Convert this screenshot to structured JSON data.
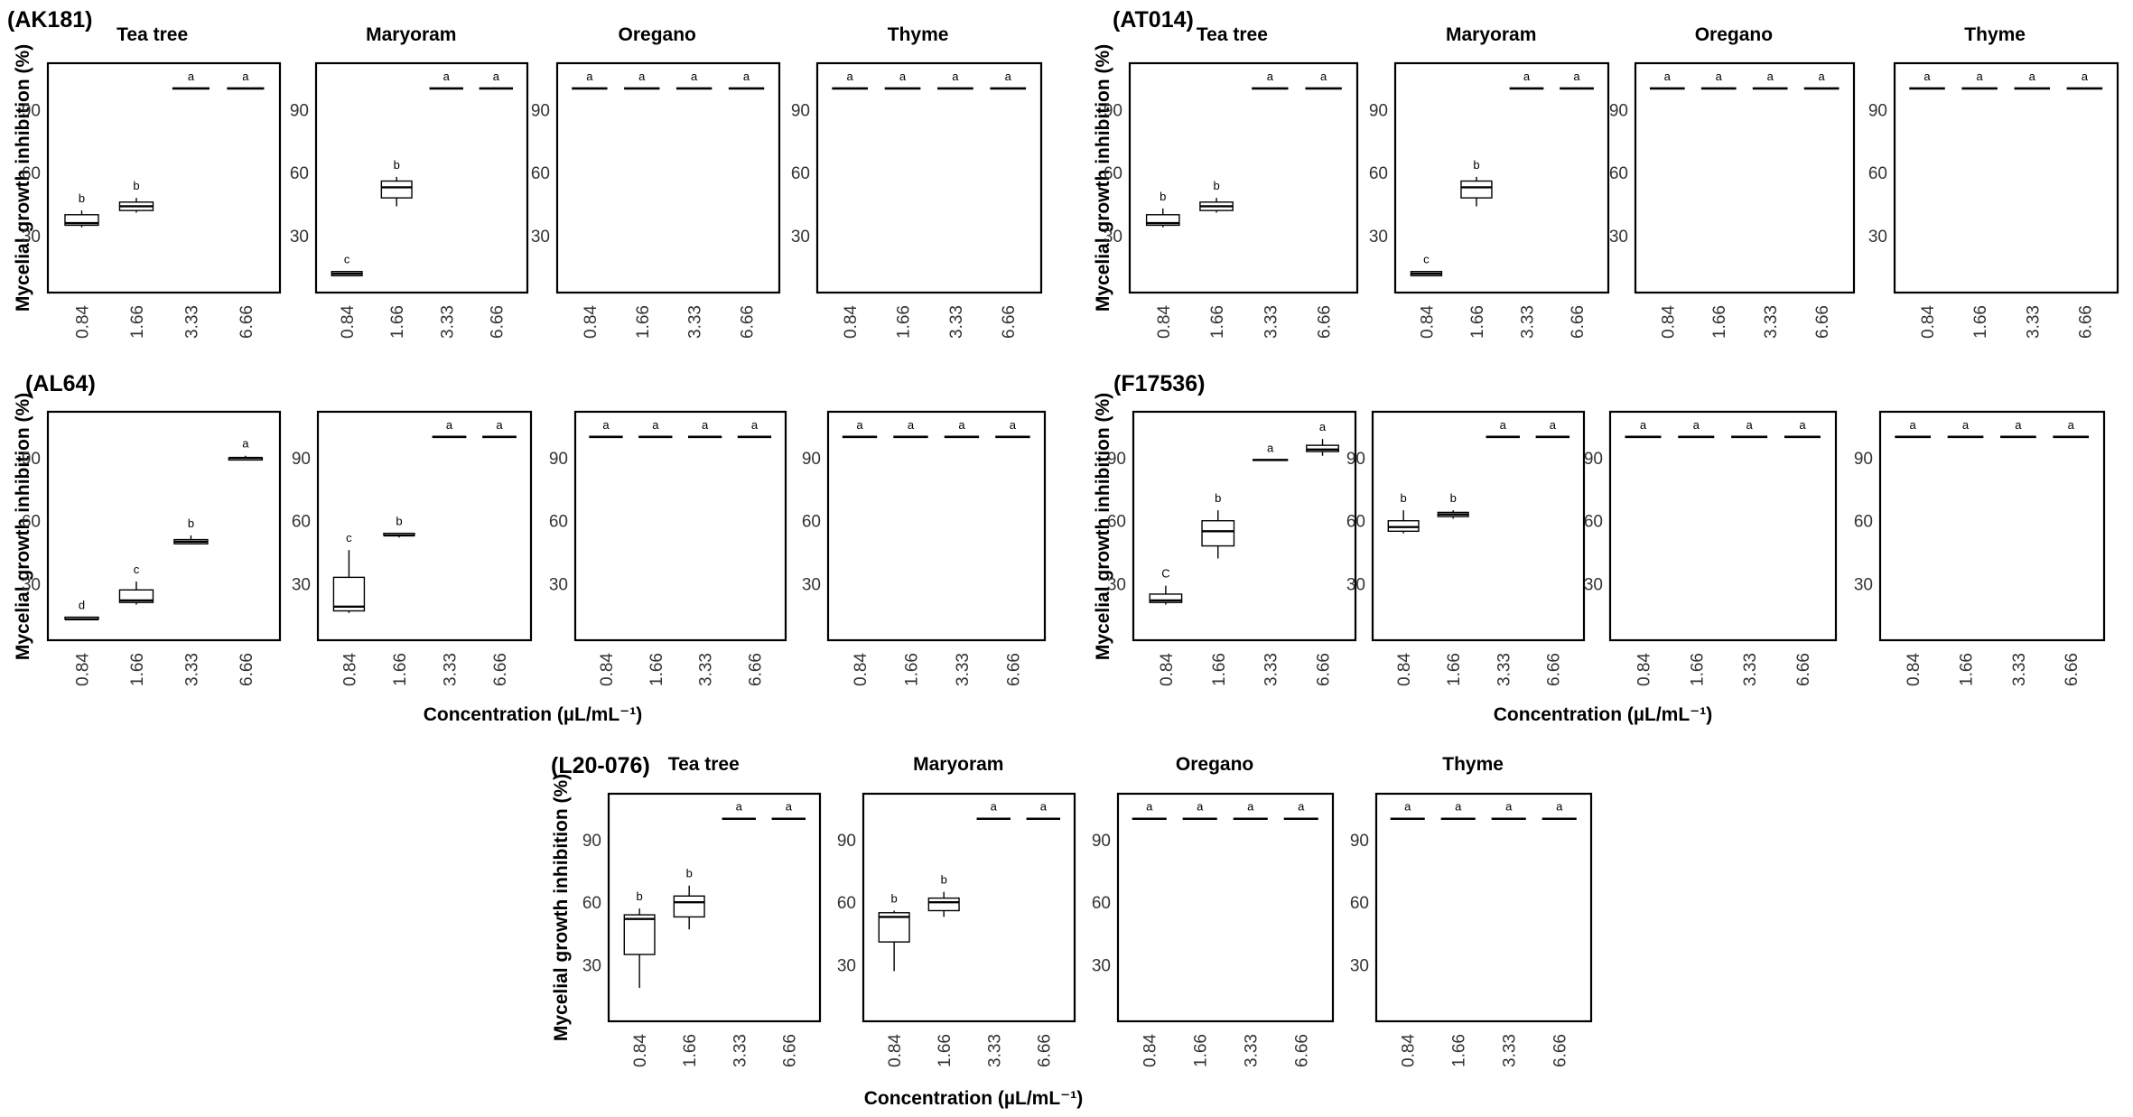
{
  "yticks": [
    30,
    60,
    90
  ],
  "ylim": [
    3,
    112
  ],
  "categories": [
    "0.84",
    "1.66",
    "3.33",
    "6.66"
  ],
  "colors": {
    "line": "#000000",
    "frame": "#000000",
    "tick_text": "#333333"
  },
  "chart_data": [
    {
      "type": "box",
      "strain": "(AK181)",
      "ylabel": "Mycelial growth inhibition (%)",
      "xlabel": "",
      "oils": [
        {
          "name": "Tea tree",
          "boxes": [
            {
              "min": 34,
              "q1": 35,
              "median": 36,
              "q3": 40,
              "max": 42,
              "letter": "b"
            },
            {
              "min": 41,
              "q1": 42,
              "median": 44,
              "q3": 46,
              "max": 48,
              "letter": "b"
            },
            {
              "min": 100,
              "q1": 100,
              "median": 100,
              "q3": 100,
              "max": 100,
              "letter": "a"
            },
            {
              "min": 100,
              "q1": 100,
              "median": 100,
              "q3": 100,
              "max": 100,
              "letter": "a"
            }
          ]
        },
        {
          "name": "Maryoram",
          "boxes": [
            {
              "min": 11,
              "q1": 11,
              "median": 12,
              "q3": 13,
              "max": 13,
              "letter": "c"
            },
            {
              "min": 44,
              "q1": 48,
              "median": 53,
              "q3": 56,
              "max": 58,
              "letter": "b"
            },
            {
              "min": 100,
              "q1": 100,
              "median": 100,
              "q3": 100,
              "max": 100,
              "letter": "a"
            },
            {
              "min": 100,
              "q1": 100,
              "median": 100,
              "q3": 100,
              "max": 100,
              "letter": "a"
            }
          ]
        },
        {
          "name": "Oregano",
          "boxes": [
            {
              "min": 100,
              "q1": 100,
              "median": 100,
              "q3": 100,
              "max": 100,
              "letter": "a"
            },
            {
              "min": 100,
              "q1": 100,
              "median": 100,
              "q3": 100,
              "max": 100,
              "letter": "a"
            },
            {
              "min": 100,
              "q1": 100,
              "median": 100,
              "q3": 100,
              "max": 100,
              "letter": "a"
            },
            {
              "min": 100,
              "q1": 100,
              "median": 100,
              "q3": 100,
              "max": 100,
              "letter": "a"
            }
          ]
        },
        {
          "name": "Thyme",
          "boxes": [
            {
              "min": 100,
              "q1": 100,
              "median": 100,
              "q3": 100,
              "max": 100,
              "letter": "a"
            },
            {
              "min": 100,
              "q1": 100,
              "median": 100,
              "q3": 100,
              "max": 100,
              "letter": "a"
            },
            {
              "min": 100,
              "q1": 100,
              "median": 100,
              "q3": 100,
              "max": 100,
              "letter": "a"
            },
            {
              "min": 100,
              "q1": 100,
              "median": 100,
              "q3": 100,
              "max": 100,
              "letter": "a"
            }
          ]
        }
      ]
    },
    {
      "type": "box",
      "strain": "(AT014)",
      "ylabel": "Mycelial growth inhibition (%)",
      "xlabel": "",
      "oils": [
        {
          "name": "Tea tree",
          "boxes": [
            {
              "min": 34,
              "q1": 35,
              "median": 36,
              "q3": 40,
              "max": 43,
              "letter": "b"
            },
            {
              "min": 41,
              "q1": 42,
              "median": 44,
              "q3": 46,
              "max": 48,
              "letter": "b"
            },
            {
              "min": 100,
              "q1": 100,
              "median": 100,
              "q3": 100,
              "max": 100,
              "letter": "a"
            },
            {
              "min": 100,
              "q1": 100,
              "median": 100,
              "q3": 100,
              "max": 100,
              "letter": "a"
            }
          ]
        },
        {
          "name": "Maryoram",
          "boxes": [
            {
              "min": 11,
              "q1": 11,
              "median": 12,
              "q3": 13,
              "max": 13,
              "letter": "c"
            },
            {
              "min": 44,
              "q1": 48,
              "median": 53,
              "q3": 56,
              "max": 58,
              "letter": "b"
            },
            {
              "min": 100,
              "q1": 100,
              "median": 100,
              "q3": 100,
              "max": 100,
              "letter": "a"
            },
            {
              "min": 100,
              "q1": 100,
              "median": 100,
              "q3": 100,
              "max": 100,
              "letter": "a"
            }
          ]
        },
        {
          "name": "Oregano",
          "boxes": [
            {
              "min": 100,
              "q1": 100,
              "median": 100,
              "q3": 100,
              "max": 100,
              "letter": "a"
            },
            {
              "min": 100,
              "q1": 100,
              "median": 100,
              "q3": 100,
              "max": 100,
              "letter": "a"
            },
            {
              "min": 100,
              "q1": 100,
              "median": 100,
              "q3": 100,
              "max": 100,
              "letter": "a"
            },
            {
              "min": 100,
              "q1": 100,
              "median": 100,
              "q3": 100,
              "max": 100,
              "letter": "a"
            }
          ]
        },
        {
          "name": "Thyme",
          "boxes": [
            {
              "min": 100,
              "q1": 100,
              "median": 100,
              "q3": 100,
              "max": 100,
              "letter": "a"
            },
            {
              "min": 100,
              "q1": 100,
              "median": 100,
              "q3": 100,
              "max": 100,
              "letter": "a"
            },
            {
              "min": 100,
              "q1": 100,
              "median": 100,
              "q3": 100,
              "max": 100,
              "letter": "a"
            },
            {
              "min": 100,
              "q1": 100,
              "median": 100,
              "q3": 100,
              "max": 100,
              "letter": "a"
            }
          ]
        }
      ]
    },
    {
      "type": "box",
      "strain": "(AL64)",
      "ylabel": "Mycelial growth inhibition (%)",
      "xlabel": "Concentration (µL/mL⁻¹)",
      "oils": [
        {
          "name": "",
          "boxes": [
            {
              "min": 13,
              "q1": 13,
              "median": 13,
              "q3": 14,
              "max": 14,
              "letter": "d"
            },
            {
              "min": 20,
              "q1": 21,
              "median": 22,
              "q3": 27,
              "max": 31,
              "letter": "c"
            },
            {
              "min": 49,
              "q1": 49,
              "median": 50,
              "q3": 51,
              "max": 53,
              "letter": "b"
            },
            {
              "min": 89,
              "q1": 89,
              "median": 90,
              "q3": 90,
              "max": 91,
              "letter": "a"
            }
          ]
        },
        {
          "name": "",
          "boxes": [
            {
              "min": 16,
              "q1": 17,
              "median": 19,
              "q3": 33,
              "max": 46,
              "letter": "c"
            },
            {
              "min": 52,
              "q1": 53,
              "median": 53,
              "q3": 54,
              "max": 54,
              "letter": "b"
            },
            {
              "min": 100,
              "q1": 100,
              "median": 100,
              "q3": 100,
              "max": 100,
              "letter": "a"
            },
            {
              "min": 100,
              "q1": 100,
              "median": 100,
              "q3": 100,
              "max": 100,
              "letter": "a"
            }
          ]
        },
        {
          "name": "",
          "boxes": [
            {
              "min": 100,
              "q1": 100,
              "median": 100,
              "q3": 100,
              "max": 100,
              "letter": "a"
            },
            {
              "min": 100,
              "q1": 100,
              "median": 100,
              "q3": 100,
              "max": 100,
              "letter": "a"
            },
            {
              "min": 100,
              "q1": 100,
              "median": 100,
              "q3": 100,
              "max": 100,
              "letter": "a"
            },
            {
              "min": 100,
              "q1": 100,
              "median": 100,
              "q3": 100,
              "max": 100,
              "letter": "a"
            }
          ]
        },
        {
          "name": "",
          "boxes": [
            {
              "min": 100,
              "q1": 100,
              "median": 100,
              "q3": 100,
              "max": 100,
              "letter": "a"
            },
            {
              "min": 100,
              "q1": 100,
              "median": 100,
              "q3": 100,
              "max": 100,
              "letter": "a"
            },
            {
              "min": 100,
              "q1": 100,
              "median": 100,
              "q3": 100,
              "max": 100,
              "letter": "a"
            },
            {
              "min": 100,
              "q1": 100,
              "median": 100,
              "q3": 100,
              "max": 100,
              "letter": "a"
            }
          ]
        }
      ]
    },
    {
      "type": "box",
      "strain": "(F17536)",
      "ylabel": "Mycelial growth inhibition (%)",
      "xlabel": "Concentration (µL/mL⁻¹)",
      "oils": [
        {
          "name": "",
          "boxes": [
            {
              "min": 20,
              "q1": 21,
              "median": 22,
              "q3": 25,
              "max": 29,
              "letter": "C"
            },
            {
              "min": 42,
              "q1": 48,
              "median": 55,
              "q3": 60,
              "max": 65,
              "letter": "b"
            },
            {
              "min": 89,
              "q1": 89,
              "median": 89,
              "q3": 89,
              "max": 89,
              "letter": "a"
            },
            {
              "min": 91,
              "q1": 93,
              "median": 94,
              "q3": 96,
              "max": 99,
              "letter": "a"
            }
          ]
        },
        {
          "name": "",
          "boxes": [
            {
              "min": 54,
              "q1": 55,
              "median": 57,
              "q3": 60,
              "max": 65,
              "letter": "b"
            },
            {
              "min": 61,
              "q1": 62,
              "median": 63,
              "q3": 64,
              "max": 65,
              "letter": "b"
            },
            {
              "min": 100,
              "q1": 100,
              "median": 100,
              "q3": 100,
              "max": 100,
              "letter": "a"
            },
            {
              "min": 100,
              "q1": 100,
              "median": 100,
              "q3": 100,
              "max": 100,
              "letter": "a"
            }
          ]
        },
        {
          "name": "",
          "boxes": [
            {
              "min": 100,
              "q1": 100,
              "median": 100,
              "q3": 100,
              "max": 100,
              "letter": "a"
            },
            {
              "min": 100,
              "q1": 100,
              "median": 100,
              "q3": 100,
              "max": 100,
              "letter": "a"
            },
            {
              "min": 100,
              "q1": 100,
              "median": 100,
              "q3": 100,
              "max": 100,
              "letter": "a"
            },
            {
              "min": 100,
              "q1": 100,
              "median": 100,
              "q3": 100,
              "max": 100,
              "letter": "a"
            }
          ]
        },
        {
          "name": "",
          "boxes": [
            {
              "min": 100,
              "q1": 100,
              "median": 100,
              "q3": 100,
              "max": 100,
              "letter": "a"
            },
            {
              "min": 100,
              "q1": 100,
              "median": 100,
              "q3": 100,
              "max": 100,
              "letter": "a"
            },
            {
              "min": 100,
              "q1": 100,
              "median": 100,
              "q3": 100,
              "max": 100,
              "letter": "a"
            },
            {
              "min": 100,
              "q1": 100,
              "median": 100,
              "q3": 100,
              "max": 100,
              "letter": "a"
            }
          ]
        }
      ]
    },
    {
      "type": "box",
      "strain": "(L20-076)",
      "ylabel": "Mycelial growth inhibition (%)",
      "xlabel": "Concentration (µL/mL⁻¹)",
      "oils": [
        {
          "name": "Tea tree",
          "boxes": [
            {
              "min": 19,
              "q1": 35,
              "median": 52,
              "q3": 54,
              "max": 57,
              "letter": "b"
            },
            {
              "min": 47,
              "q1": 53,
              "median": 60,
              "q3": 63,
              "max": 68,
              "letter": "b"
            },
            {
              "min": 100,
              "q1": 100,
              "median": 100,
              "q3": 100,
              "max": 100,
              "letter": "a"
            },
            {
              "min": 100,
              "q1": 100,
              "median": 100,
              "q3": 100,
              "max": 100,
              "letter": "a"
            }
          ]
        },
        {
          "name": "Maryoram",
          "boxes": [
            {
              "min": 27,
              "q1": 41,
              "median": 53,
              "q3": 55,
              "max": 56,
              "letter": "b"
            },
            {
              "min": 53,
              "q1": 56,
              "median": 60,
              "q3": 62,
              "max": 65,
              "letter": "b"
            },
            {
              "min": 100,
              "q1": 100,
              "median": 100,
              "q3": 100,
              "max": 100,
              "letter": "a"
            },
            {
              "min": 100,
              "q1": 100,
              "median": 100,
              "q3": 100,
              "max": 100,
              "letter": "a"
            }
          ]
        },
        {
          "name": "Oregano",
          "boxes": [
            {
              "min": 100,
              "q1": 100,
              "median": 100,
              "q3": 100,
              "max": 100,
              "letter": "a"
            },
            {
              "min": 100,
              "q1": 100,
              "median": 100,
              "q3": 100,
              "max": 100,
              "letter": "a"
            },
            {
              "min": 100,
              "q1": 100,
              "median": 100,
              "q3": 100,
              "max": 100,
              "letter": "a"
            },
            {
              "min": 100,
              "q1": 100,
              "median": 100,
              "q3": 100,
              "max": 100,
              "letter": "a"
            }
          ]
        },
        {
          "name": "Thyme",
          "boxes": [
            {
              "min": 100,
              "q1": 100,
              "median": 100,
              "q3": 100,
              "max": 100,
              "letter": "a"
            },
            {
              "min": 100,
              "q1": 100,
              "median": 100,
              "q3": 100,
              "max": 100,
              "letter": "a"
            },
            {
              "min": 100,
              "q1": 100,
              "median": 100,
              "q3": 100,
              "max": 100,
              "letter": "a"
            },
            {
              "min": 100,
              "q1": 100,
              "median": 100,
              "q3": 100,
              "max": 100,
              "letter": "a"
            }
          ]
        }
      ]
    }
  ]
}
